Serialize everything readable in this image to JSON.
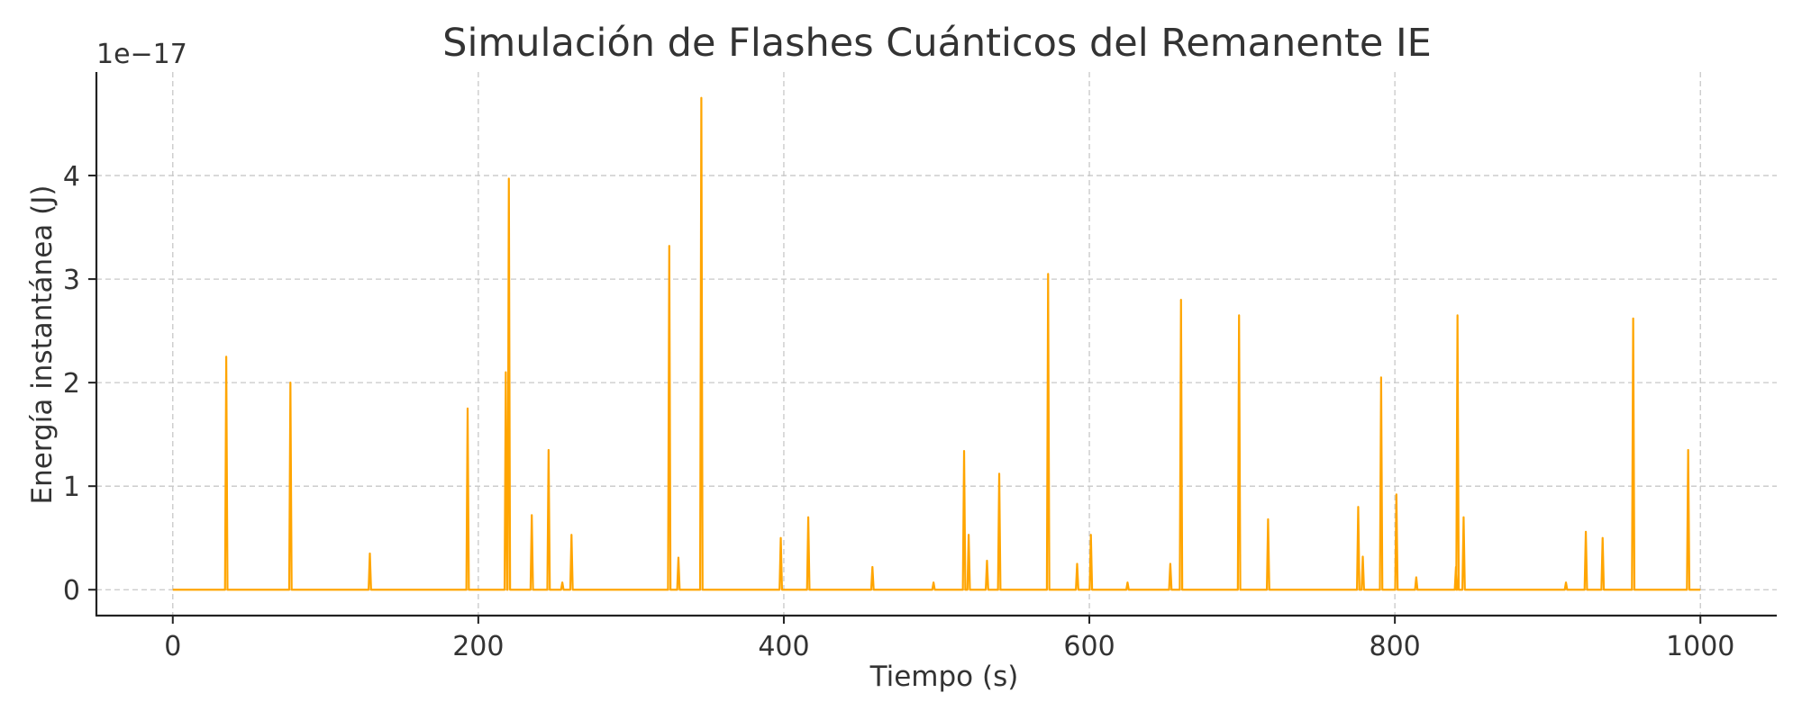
{
  "chart_data": {
    "type": "line",
    "title": "Simulación de Flashes Cuánticos del Remanente IE",
    "xlabel": "Tiempo (s)",
    "ylabel": "Energía instantánea (J)",
    "y_scale_label": "1e−17",
    "xlim": [
      -50,
      1050
    ],
    "ylim": [
      -0.25,
      5.0
    ],
    "x_ticks": [
      0,
      200,
      400,
      600,
      800,
      1000
    ],
    "y_ticks": [
      0,
      1,
      2,
      3,
      4
    ],
    "grid": true,
    "line_color": "#FFA500",
    "series": [
      {
        "baseline": 0,
        "x_range": [
          0,
          1000
        ],
        "peaks": [
          [
            35,
            2.25
          ],
          [
            77,
            2.0
          ],
          [
            129,
            0.35
          ],
          [
            193,
            1.75
          ],
          [
            218,
            2.1
          ],
          [
            220,
            3.97
          ],
          [
            235,
            0.72
          ],
          [
            246,
            1.35
          ],
          [
            255,
            0.07
          ],
          [
            261,
            0.53
          ],
          [
            325,
            3.32
          ],
          [
            331,
            0.31
          ],
          [
            346,
            4.75
          ],
          [
            398,
            0.5
          ],
          [
            416,
            0.7
          ],
          [
            458,
            0.22
          ],
          [
            498,
            0.07
          ],
          [
            518,
            1.34
          ],
          [
            521,
            0.53
          ],
          [
            533,
            0.28
          ],
          [
            541,
            1.12
          ],
          [
            573,
            3.05
          ],
          [
            592,
            0.25
          ],
          [
            601,
            0.53
          ],
          [
            625,
            0.07
          ],
          [
            653,
            0.25
          ],
          [
            660,
            2.8
          ],
          [
            698,
            2.65
          ],
          [
            717,
            0.68
          ],
          [
            776,
            0.8
          ],
          [
            779,
            0.32
          ],
          [
            791,
            2.05
          ],
          [
            801,
            0.92
          ],
          [
            814,
            0.12
          ],
          [
            840,
            0.22
          ],
          [
            841,
            2.65
          ],
          [
            845,
            0.7
          ],
          [
            912,
            0.07
          ],
          [
            925,
            0.56
          ],
          [
            936,
            0.5
          ],
          [
            956,
            2.62
          ],
          [
            992,
            1.35
          ]
        ]
      }
    ]
  }
}
